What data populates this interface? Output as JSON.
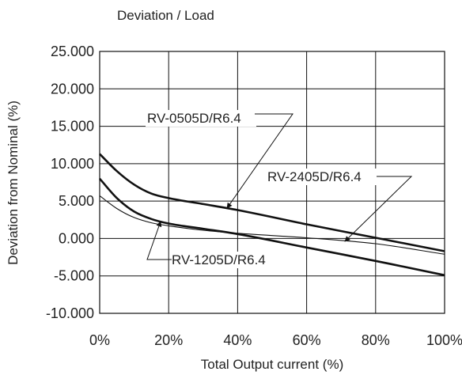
{
  "chart_data": {
    "type": "line",
    "title": "Deviation / Load",
    "xlabel": "Total Output current (%)",
    "ylabel": "Deviation from Nominal (%)",
    "xlim": [
      0,
      100
    ],
    "ylim": [
      -10,
      25
    ],
    "x_ticks": [
      "0%",
      "20%",
      "40%",
      "60%",
      "80%",
      "100%"
    ],
    "y_ticks": [
      "25.000",
      "20.000",
      "15.000",
      "10.000",
      "5.000",
      "0.000",
      "-5.000",
      "-10.000"
    ],
    "grid": true,
    "series": [
      {
        "name": "RV-0505D/R6.4",
        "line_width": "thick",
        "x": [
          0,
          5,
          10,
          15,
          20,
          30,
          40,
          60,
          80,
          100
        ],
        "y": [
          11.3,
          9.0,
          7.2,
          6.0,
          5.4,
          4.6,
          3.8,
          1.9,
          0.1,
          -1.7
        ]
      },
      {
        "name": "RV-1205D/R6.4",
        "line_width": "thick",
        "x": [
          0,
          5,
          10,
          15,
          20,
          30,
          40,
          60,
          80,
          100
        ],
        "y": [
          8.0,
          5.4,
          3.6,
          2.6,
          2.0,
          1.3,
          0.6,
          -1.2,
          -3.0,
          -4.9
        ]
      },
      {
        "name": "RV-2405D/R6.4",
        "line_width": "thin",
        "x": [
          0,
          5,
          10,
          15,
          20,
          30,
          40,
          60,
          80,
          100
        ],
        "y": [
          5.7,
          4.0,
          2.8,
          2.1,
          1.7,
          1.1,
          0.7,
          0.1,
          -0.7,
          -2.1
        ]
      }
    ],
    "annotations": [
      {
        "text": "RV-0505D/R6.4",
        "series": 0
      },
      {
        "text": "RV-2405D/R6.4",
        "series": 2
      },
      {
        "text": "RV-1205D/R6.4",
        "series": 1
      }
    ]
  }
}
